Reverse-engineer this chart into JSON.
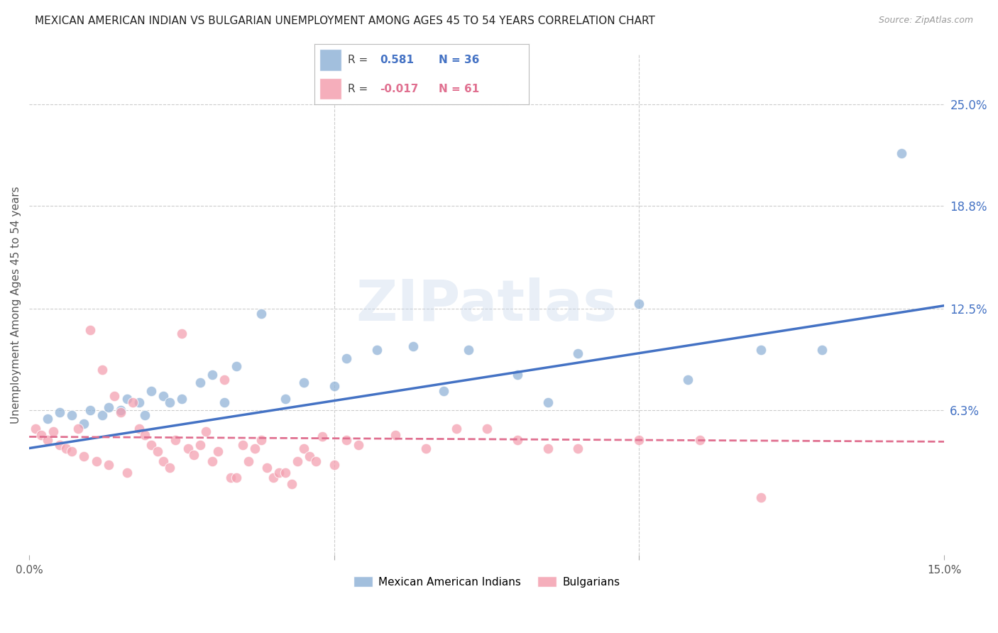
{
  "title": "MEXICAN AMERICAN INDIAN VS BULGARIAN UNEMPLOYMENT AMONG AGES 45 TO 54 YEARS CORRELATION CHART",
  "source": "Source: ZipAtlas.com",
  "ylabel": "Unemployment Among Ages 45 to 54 years",
  "xlim": [
    0.0,
    0.15
  ],
  "ylim": [
    -0.025,
    0.28
  ],
  "ytick_labels_right": [
    "6.3%",
    "12.5%",
    "18.8%",
    "25.0%"
  ],
  "ytick_vals_right": [
    0.063,
    0.125,
    0.188,
    0.25
  ],
  "watermark": "ZIPatlas",
  "blue_color": "#92B4D7",
  "pink_color": "#F4A0B0",
  "line_blue": "#4472C4",
  "line_pink": "#E07090",
  "blue_scatter": [
    [
      0.003,
      0.058
    ],
    [
      0.005,
      0.062
    ],
    [
      0.007,
      0.06
    ],
    [
      0.009,
      0.055
    ],
    [
      0.01,
      0.063
    ],
    [
      0.012,
      0.06
    ],
    [
      0.013,
      0.065
    ],
    [
      0.015,
      0.063
    ],
    [
      0.016,
      0.07
    ],
    [
      0.018,
      0.068
    ],
    [
      0.019,
      0.06
    ],
    [
      0.02,
      0.075
    ],
    [
      0.022,
      0.072
    ],
    [
      0.023,
      0.068
    ],
    [
      0.025,
      0.07
    ],
    [
      0.028,
      0.08
    ],
    [
      0.03,
      0.085
    ],
    [
      0.032,
      0.068
    ],
    [
      0.034,
      0.09
    ],
    [
      0.038,
      0.122
    ],
    [
      0.042,
      0.07
    ],
    [
      0.045,
      0.08
    ],
    [
      0.05,
      0.078
    ],
    [
      0.052,
      0.095
    ],
    [
      0.057,
      0.1
    ],
    [
      0.063,
      0.102
    ],
    [
      0.068,
      0.075
    ],
    [
      0.072,
      0.1
    ],
    [
      0.08,
      0.085
    ],
    [
      0.085,
      0.068
    ],
    [
      0.09,
      0.098
    ],
    [
      0.1,
      0.128
    ],
    [
      0.108,
      0.082
    ],
    [
      0.12,
      0.1
    ],
    [
      0.13,
      0.1
    ],
    [
      0.143,
      0.22
    ]
  ],
  "pink_scatter": [
    [
      0.001,
      0.052
    ],
    [
      0.002,
      0.048
    ],
    [
      0.003,
      0.045
    ],
    [
      0.004,
      0.05
    ],
    [
      0.005,
      0.042
    ],
    [
      0.006,
      0.04
    ],
    [
      0.007,
      0.038
    ],
    [
      0.008,
      0.052
    ],
    [
      0.009,
      0.035
    ],
    [
      0.01,
      0.112
    ],
    [
      0.011,
      0.032
    ],
    [
      0.012,
      0.088
    ],
    [
      0.013,
      0.03
    ],
    [
      0.014,
      0.072
    ],
    [
      0.015,
      0.062
    ],
    [
      0.016,
      0.025
    ],
    [
      0.017,
      0.068
    ],
    [
      0.018,
      0.052
    ],
    [
      0.019,
      0.048
    ],
    [
      0.02,
      0.042
    ],
    [
      0.021,
      0.038
    ],
    [
      0.022,
      0.032
    ],
    [
      0.023,
      0.028
    ],
    [
      0.024,
      0.045
    ],
    [
      0.025,
      0.11
    ],
    [
      0.026,
      0.04
    ],
    [
      0.027,
      0.036
    ],
    [
      0.028,
      0.042
    ],
    [
      0.029,
      0.05
    ],
    [
      0.03,
      0.032
    ],
    [
      0.031,
      0.038
    ],
    [
      0.032,
      0.082
    ],
    [
      0.033,
      0.022
    ],
    [
      0.034,
      0.022
    ],
    [
      0.035,
      0.042
    ],
    [
      0.036,
      0.032
    ],
    [
      0.037,
      0.04
    ],
    [
      0.038,
      0.045
    ],
    [
      0.039,
      0.028
    ],
    [
      0.04,
      0.022
    ],
    [
      0.041,
      0.025
    ],
    [
      0.042,
      0.025
    ],
    [
      0.043,
      0.018
    ],
    [
      0.044,
      0.032
    ],
    [
      0.045,
      0.04
    ],
    [
      0.046,
      0.035
    ],
    [
      0.047,
      0.032
    ],
    [
      0.048,
      0.047
    ],
    [
      0.05,
      0.03
    ],
    [
      0.052,
      0.045
    ],
    [
      0.054,
      0.042
    ],
    [
      0.06,
      0.048
    ],
    [
      0.065,
      0.04
    ],
    [
      0.07,
      0.052
    ],
    [
      0.075,
      0.052
    ],
    [
      0.08,
      0.045
    ],
    [
      0.085,
      0.04
    ],
    [
      0.09,
      0.04
    ],
    [
      0.1,
      0.045
    ],
    [
      0.11,
      0.045
    ],
    [
      0.12,
      0.01
    ]
  ],
  "blue_trendline_x": [
    0.0,
    0.15
  ],
  "blue_trendline_y": [
    0.04,
    0.127
  ],
  "pink_trendline_x": [
    0.0,
    0.15
  ],
  "pink_trendline_y": [
    0.047,
    0.044
  ],
  "grid_color": "#CCCCCC",
  "background_color": "#FFFFFF",
  "title_fontsize": 11,
  "axis_label_fontsize": 11,
  "tick_fontsize": 11
}
